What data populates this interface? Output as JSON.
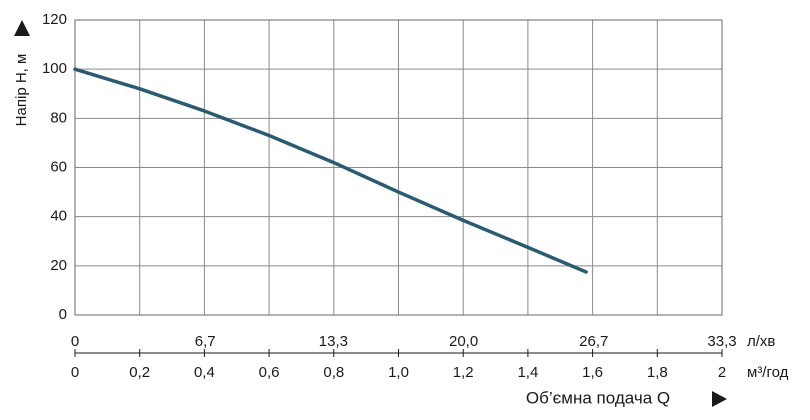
{
  "chart_data": {
    "type": "line",
    "y_label": "Напір H, м",
    "x_label": "Об’ємна подача Q",
    "x_unit": "м³/год",
    "x2_unit": "л/хв",
    "x": [
      0,
      0.2,
      0.4,
      0.6,
      0.8,
      1.0,
      1.2,
      1.4,
      1.58
    ],
    "series": [
      {
        "color": "#2b5b72",
        "values": [
          100,
          92,
          83,
          73,
          62,
          50,
          38.5,
          27.5,
          17.5
        ]
      }
    ],
    "xlim": [
      0,
      2
    ],
    "xticks": [
      0,
      {
        "value": 0.2,
        "label": "0,2"
      },
      {
        "value": 0.4,
        "label": "0,4"
      },
      {
        "value": 0.6,
        "label": "0,6"
      },
      {
        "value": 0.8,
        "label": "0,8"
      },
      {
        "value": 1.0,
        "label": "1,0"
      },
      {
        "value": 1.2,
        "label": "1,2"
      },
      {
        "value": 1.4,
        "label": "1,4"
      },
      {
        "value": 1.6,
        "label": "1,6"
      },
      {
        "value": 1.8,
        "label": "1,8"
      },
      2
    ],
    "x2lim": [
      0,
      33.3
    ],
    "x2ticks": [
      0,
      {
        "value": 6.7,
        "label": "6,7"
      },
      {
        "value": 13.3,
        "label": "13,3"
      },
      {
        "value": 20.0,
        "label": "20,0"
      },
      {
        "value": 26.7,
        "label": "26,7"
      },
      {
        "value": 33.3,
        "label": "33,3"
      }
    ],
    "ylim": [
      0,
      120
    ],
    "yticks": [
      0,
      20,
      40,
      60,
      80,
      100,
      120
    ],
    "grid": true
  }
}
